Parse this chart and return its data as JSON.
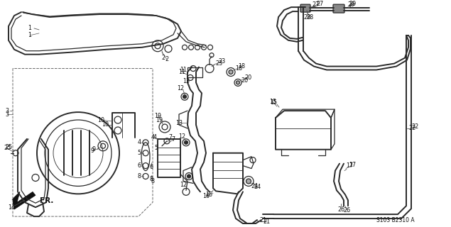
{
  "bg_color": "#ffffff",
  "fig_width": 6.35,
  "fig_height": 3.2,
  "dpi": 100,
  "diagram_code": "S103 B2310 A",
  "lc": "#2a2a2a",
  "lw_thick": 1.4,
  "lw_mid": 0.9,
  "lw_thin": 0.6,
  "label_fs": 5.8
}
